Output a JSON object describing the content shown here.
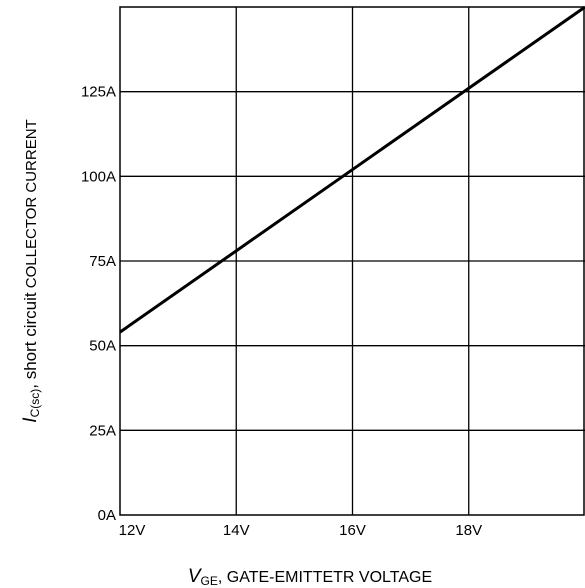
{
  "chart_data": {
    "type": "line",
    "title": "",
    "xlabel": {
      "symbol": "V",
      "subscript": "GE",
      "text": ", GATE-EMITTETR VOLTAGE"
    },
    "ylabel": {
      "symbol": "I",
      "subscript": "C(sc)",
      "text_mid": ", short circuit",
      "text_end": " COLLECTOR CURRENT"
    },
    "xlim": [
      12,
      20
    ],
    "ylim": [
      0,
      150
    ],
    "x_ticks": [
      {
        "value": 12,
        "label": "12V"
      },
      {
        "value": 14,
        "label": "14V"
      },
      {
        "value": 16,
        "label": "16V"
      },
      {
        "value": 18,
        "label": "18V"
      }
    ],
    "y_ticks": [
      {
        "value": 0,
        "label": "0A"
      },
      {
        "value": 25,
        "label": "25A"
      },
      {
        "value": 50,
        "label": "50A"
      },
      {
        "value": 75,
        "label": "75A"
      },
      {
        "value": 100,
        "label": "100A"
      },
      {
        "value": 125,
        "label": "125A"
      }
    ],
    "grid": true,
    "series": [
      {
        "x": [
          12,
          14,
          16,
          18,
          20
        ],
        "y": [
          54,
          78,
          102,
          126,
          150
        ]
      }
    ],
    "line_color": "#000000"
  }
}
